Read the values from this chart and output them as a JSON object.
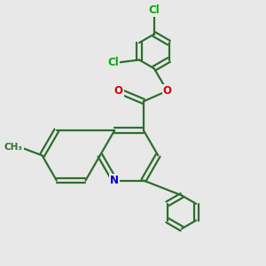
{
  "bg_color": "#e8e8e8",
  "bond_color": "#2d6e2d",
  "bond_width": 1.6,
  "atom_colors": {
    "Cl": "#00aa00",
    "O": "#cc0000",
    "N": "#0000cc",
    "C": "#2d6e2d"
  },
  "font_size": 8.5,
  "fig_size": [
    3.0,
    3.0
  ],
  "dpi": 100
}
